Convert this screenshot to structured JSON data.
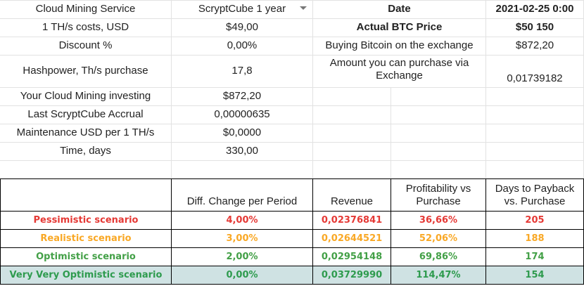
{
  "colors": {
    "pessimistic": "#e53935",
    "realistic": "#f9a825",
    "optimistic": "#43a047",
    "very_optimistic": "#2e9b4e",
    "highlight_row": "#cfe2e3"
  },
  "left_params": [
    {
      "label": "Cloud Mining Service",
      "value": "ScryptCube 1 year"
    },
    {
      "label": "1 TH/s costs, USD",
      "value": "$49,00"
    },
    {
      "label": "Discount %",
      "value": "0,00%"
    },
    {
      "label": "Hashpower, Th/s purchase",
      "value": "17,8"
    },
    {
      "label": "Your Cloud Mining investing",
      "value": "$872,20"
    },
    {
      "label": "Last ScryptCube Accrual",
      "value": "0,00000635"
    },
    {
      "label": "Maintenance USD per 1 TH/s",
      "value": "$0,0000"
    },
    {
      "label": "Time, days",
      "value": "330,00"
    }
  ],
  "right_params": [
    {
      "label": "Date",
      "value": "2021-02-25 0:00"
    },
    {
      "label": "Actual BTC Price",
      "value": "$50 150"
    },
    {
      "label": "Buying Bitcoin on the exchange",
      "value": "$872,20"
    },
    {
      "label": "Amount you can purchase via Exchange",
      "value": "0,01739182"
    }
  ],
  "dropdown_icon": "triangle-down-icon",
  "scenario_headers": {
    "diff": "Diff. Change per Period",
    "revenue": "Revenue",
    "profit": "Profitability vs Purchase",
    "payback": "Days to Payback vs. Purchase"
  },
  "scenarios": [
    {
      "name": "Pessimistic scenario",
      "diff": "4,00%",
      "revenue": "0,02376841",
      "profit": "36,66%",
      "payback": "205"
    },
    {
      "name": "Realistic scenario",
      "diff": "3,00%",
      "revenue": "0,02644521",
      "profit": "52,06%",
      "payback": "188"
    },
    {
      "name": "Optimistic scenario",
      "diff": "2,00%",
      "revenue": "0,02954148",
      "profit": "69,86%",
      "payback": "174"
    },
    {
      "name": "Very Very Optimistic scenario",
      "diff": "0,00%",
      "revenue": "0,03729990",
      "profit": "114,47%",
      "payback": "154"
    }
  ]
}
